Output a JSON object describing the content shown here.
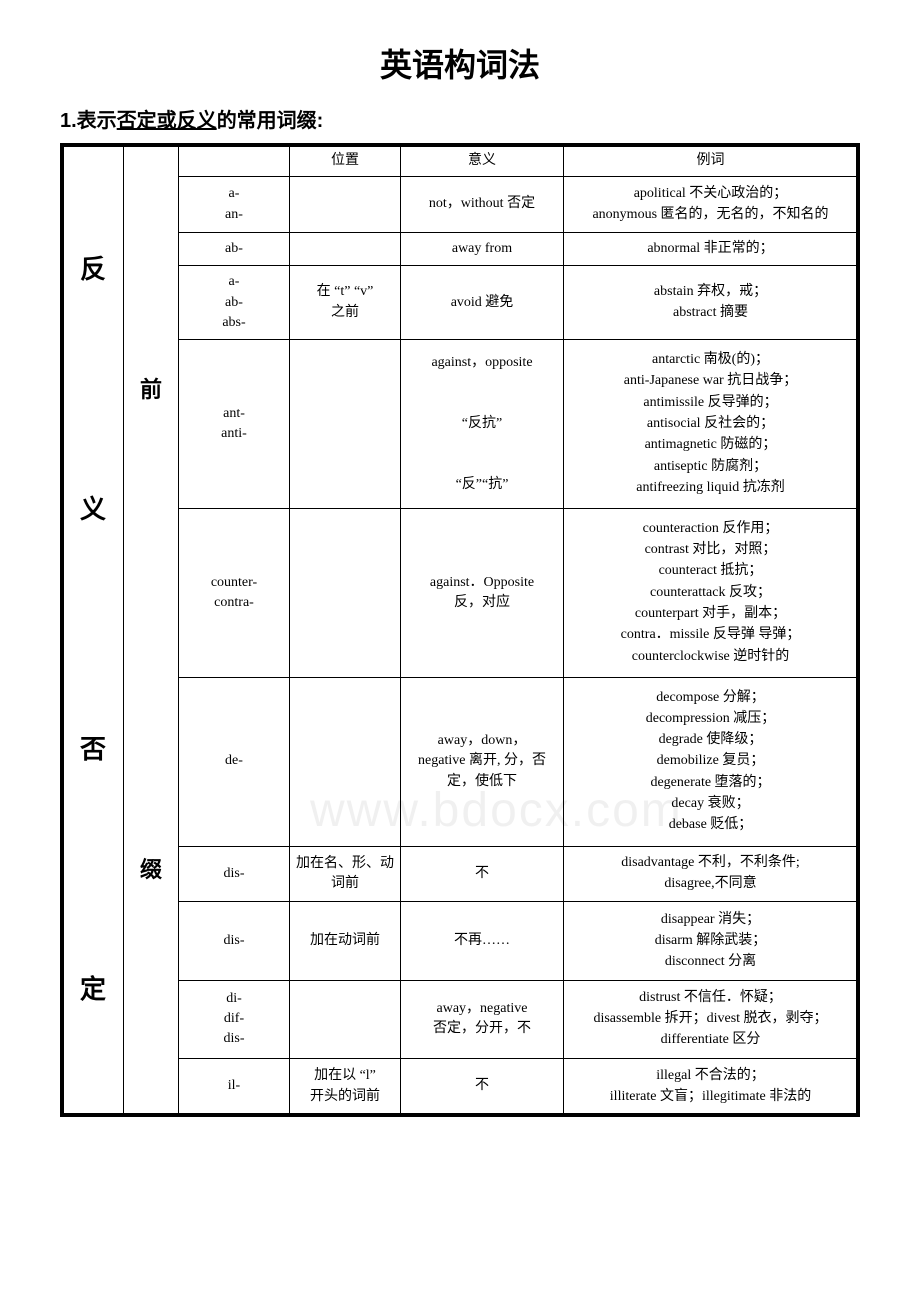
{
  "title": "英语构词法",
  "subtitle_prefix": "1.表示",
  "subtitle_ul": "否定或反义",
  "subtitle_suffix": "的常用词缀:",
  "side_label_1": "反 义 否 定",
  "side_label_2_a": "前",
  "side_label_2_b": "缀",
  "headers": {
    "c3": "位置",
    "c4": "意义",
    "c5": "例词"
  },
  "rows": [
    {
      "prefix": "a-\nan-",
      "pos": "",
      "meaning": "not，without 否定",
      "examples": [
        "apolitical 不关心政治的；",
        "anonymous 匿名的，无名的，不知名的"
      ]
    },
    {
      "prefix": "ab-",
      "pos": "",
      "meaning": "away from",
      "examples": [
        "abnormal 非正常的；"
      ]
    },
    {
      "prefix": "a-\nab-\nabs-",
      "pos": "在 “t” “v”\n之前",
      "meaning": "avoid 避免",
      "examples": [
        "abstain 弃权，戒；",
        "abstract 摘要"
      ]
    },
    {
      "prefix": "ant-\nanti-",
      "pos": "",
      "meaning": "against，opposite\n\n“反抗”\n\n“反”“抗”",
      "examples": [
        "antarctic 南极(的)；",
        "anti-Japanese war 抗日战争；",
        "antimissile 反导弹的；",
        "antisocial 反社会的；",
        "antimagnetic 防磁的；",
        "antiseptic 防腐剂；",
        "antifreezing liquid 抗冻剂"
      ]
    },
    {
      "prefix": "counter-\ncontra-",
      "pos": "",
      "meaning": "against．Opposite\n反，对应",
      "examples": [
        "counteraction 反作用；",
        "contrast 对比，对照；",
        "counteract 抵抗；",
        "counterattack 反攻；",
        "counterpart 对手，副本；",
        "contra．missile 反导弹 导弹；",
        "counterclockwise 逆时针的"
      ]
    },
    {
      "prefix": "de-",
      "pos": "",
      "meaning": "away，down，\nnegative 离开, 分，否定，使低下",
      "examples": [
        "decompose 分解；",
        "decompression 减压；",
        "degrade 使降级；",
        "demobilize 复员；",
        "degenerate 堕落的；",
        "decay 衰败；",
        "debase 贬低；"
      ]
    },
    {
      "prefix": "dis-",
      "pos": "加在名、形、动词前",
      "meaning": "不",
      "examples": [
        "disadvantage 不利，不利条件;",
        "disagree,不同意"
      ]
    },
    {
      "prefix": "dis-",
      "pos": "加在动词前",
      "meaning": "不再……",
      "examples": [
        "disappear 消失；",
        "disarm 解除武装；",
        "disconnect 分离"
      ]
    },
    {
      "prefix": "di-\ndif-\ndis-",
      "pos": "",
      "meaning": "away，negative\n否定，分开，不",
      "examples": [
        "distrust 不信任．怀疑；",
        "disassemble 拆开；divest 脱衣，剥夺；",
        "differentiate 区分"
      ]
    },
    {
      "prefix": "il-",
      "pos": "加在以 “l”\n开头的词前",
      "meaning": "不",
      "examples": [
        "illegal 不合法的；",
        "illiterate 文盲；illegitimate 非法的"
      ]
    }
  ],
  "watermark": "www.bdocx.com",
  "colors": {
    "text": "#000000",
    "bg": "#ffffff",
    "border": "#000000",
    "watermark": "rgba(0,0,0,0.06)"
  },
  "fonts": {
    "title_size": 32,
    "subtitle_size": 20,
    "cell_size": 14,
    "side_size": 26
  }
}
